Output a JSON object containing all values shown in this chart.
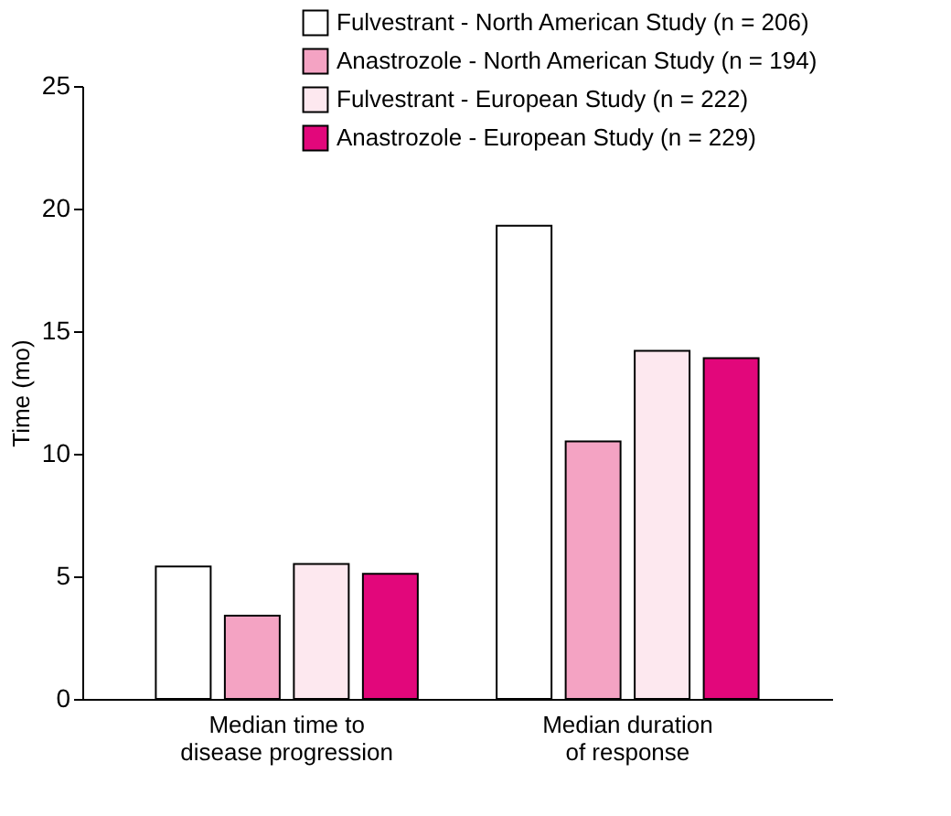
{
  "chart_data": {
    "type": "bar",
    "ylabel": "Time (mo)",
    "categories": [
      "Median time to disease progression",
      "Median duration of response"
    ],
    "series": [
      {
        "name": "Fulvestrant - North American Study (n = 206)",
        "color": "#ffffff",
        "values": [
          5.4,
          19.3
        ]
      },
      {
        "name": "Anastrozole - North American Study (n = 194)",
        "color": "#f4a3c3",
        "values": [
          3.4,
          10.5
        ]
      },
      {
        "name": "Fulvestrant - European Study (n = 222)",
        "color": "#fde8ef",
        "values": [
          5.5,
          14.2
        ]
      },
      {
        "name": "Anastrozole - European Study (n = 229)",
        "color": "#e2077b",
        "values": [
          5.1,
          13.9
        ]
      }
    ],
    "ylim": [
      0,
      25
    ],
    "yticks": [
      0,
      5,
      10,
      15,
      20,
      25
    ],
    "grid": false,
    "legend": "top right"
  }
}
